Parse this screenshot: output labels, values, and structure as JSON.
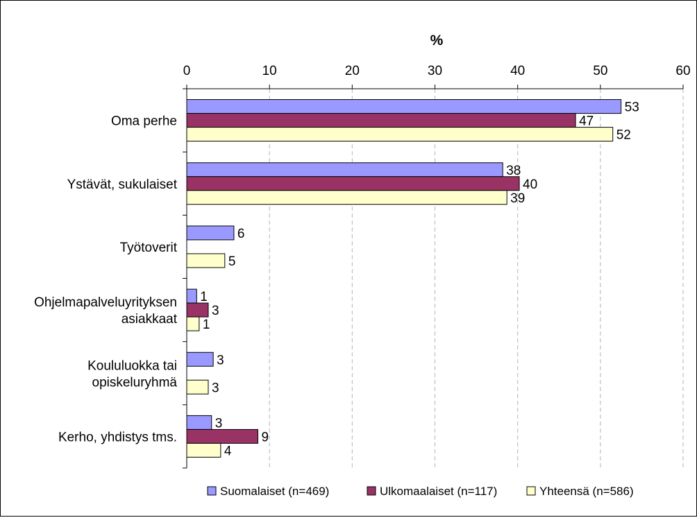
{
  "chart_data": {
    "type": "bar",
    "orientation": "horizontal",
    "xlabel": "%",
    "xlim": [
      0,
      60
    ],
    "xticks": [
      "0",
      "10",
      "20",
      "30",
      "40",
      "50",
      "60"
    ],
    "x_axis_position": "top",
    "grid": "vertical dashed",
    "categories": [
      "Oma perhe",
      "Ystävät, sukulaiset",
      "Työtoverit",
      "Ohjelmapalveluyrityksen asiakkaat",
      "Koululuokka tai opiskeluryhmä",
      "Kerho, yhdistys tms."
    ],
    "category_lines": [
      [
        "Oma perhe"
      ],
      [
        "Ystävät, sukulaiset"
      ],
      [
        "Työtoverit"
      ],
      [
        "Ohjelmapalveluyrityksen",
        "asiakkaat"
      ],
      [
        "Koululuokka tai",
        "opiskeluryhmä"
      ],
      [
        "Kerho, yhdistys tms."
      ]
    ],
    "series": [
      {
        "name": "Suomalaiset (n=469)",
        "color": "#9999ff",
        "values": [
          52.5,
          38.2,
          5.7,
          1.2,
          3.2,
          3.0
        ],
        "labels": [
          "53",
          "38",
          "6",
          "1",
          "3",
          "3"
        ]
      },
      {
        "name": "Ulkomaalaiset (n=117)",
        "color": "#993366",
        "values": [
          47.0,
          40.2,
          null,
          2.6,
          null,
          8.6
        ],
        "labels": [
          "47",
          "40",
          "",
          "3",
          "",
          "9"
        ]
      },
      {
        "name": "Yhteensä (n=586)",
        "color": "#ffffcc",
        "values": [
          51.5,
          38.7,
          4.6,
          1.5,
          2.6,
          4.1
        ],
        "labels": [
          "52",
          "39",
          "5",
          "1",
          "3",
          "4"
        ]
      }
    ],
    "legend_position": "bottom"
  }
}
